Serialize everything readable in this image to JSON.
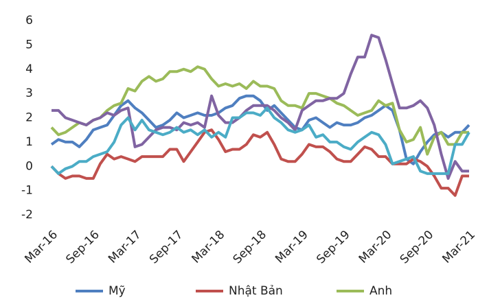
{
  "chart_data": {
    "type": "line",
    "categories": [
      "Mar-16",
      null,
      null,
      null,
      null,
      null,
      "Sep-16",
      null,
      null,
      null,
      null,
      null,
      "Mar-17",
      null,
      null,
      null,
      null,
      null,
      "Sep-17",
      null,
      null,
      null,
      null,
      null,
      "Mar-18",
      null,
      null,
      null,
      null,
      null,
      "Sep-18",
      null,
      null,
      null,
      null,
      null,
      "Mar-19",
      null,
      null,
      null,
      null,
      null,
      "Sep-19",
      null,
      null,
      null,
      null,
      null,
      "Mar-20",
      null,
      null,
      null,
      null,
      null,
      "Sep-20",
      null,
      null,
      null,
      null,
      null,
      "Mar-21"
    ],
    "series": [
      {
        "name": "Mỹ",
        "color": "#4f7fc0",
        "values": [
          0.9,
          1.1,
          1.0,
          1.0,
          0.8,
          1.1,
          1.5,
          1.6,
          1.7,
          2.1,
          2.5,
          2.7,
          2.4,
          2.2,
          1.9,
          1.6,
          1.7,
          1.9,
          2.2,
          2.0,
          2.1,
          2.2,
          2.1,
          2.1,
          2.2,
          2.4,
          2.5,
          2.8,
          2.9,
          2.9,
          2.7,
          2.3,
          2.5,
          2.2,
          1.9,
          1.6,
          1.5,
          1.9,
          2.0,
          1.8,
          1.6,
          1.8,
          1.7,
          1.7,
          1.8,
          2.0,
          2.1,
          2.3,
          2.5,
          2.3,
          1.5,
          0.3,
          0.1,
          0.6,
          1.0,
          1.3,
          1.4,
          1.2,
          1.4,
          1.4,
          1.7
        ]
      },
      {
        "name": "Nhật Bản",
        "color": "#c0504d",
        "values": [
          0,
          -0.3,
          -0.5,
          -0.4,
          -0.4,
          -0.5,
          -0.5,
          0.1,
          0.5,
          0.3,
          0.4,
          0.3,
          0.2,
          0.4,
          0.4,
          0.4,
          0.4,
          0.7,
          0.7,
          0.2,
          0.6,
          1.0,
          1.4,
          1.5,
          1.1,
          0.6,
          0.7,
          0.7,
          0.9,
          1.3,
          1.2,
          1.4,
          0.9,
          0.3,
          0.2,
          0.2,
          0.5,
          0.9,
          0.8,
          0.8,
          0.6,
          0.3,
          0.2,
          0.2,
          0.5,
          0.8,
          0.7,
          0.4,
          0.4,
          0.1,
          0.1,
          0.1,
          0.3,
          0.2,
          0,
          -0.4,
          -0.9,
          -0.9,
          -1.2,
          -0.4,
          -0.4
        ]
      },
      {
        "name": "Anh",
        "color": "#9bbb59",
        "values": [
          1.6,
          1.3,
          1.4,
          1.6,
          1.8,
          1.7,
          1.9,
          2.0,
          2.3,
          2.5,
          2.6,
          3.2,
          3.1,
          3.5,
          3.7,
          3.5,
          3.6,
          3.9,
          3.9,
          4.0,
          3.9,
          4.1,
          4.0,
          3.6,
          3.3,
          3.4,
          3.3,
          3.4,
          3.2,
          3.5,
          3.3,
          3.3,
          3.2,
          2.7,
          2.5,
          2.5,
          2.4,
          3.0,
          3.0,
          2.9,
          2.8,
          2.6,
          2.5,
          2.3,
          2.1,
          2.2,
          2.3,
          2.7,
          2.5,
          2.6,
          1.5,
          1.0,
          1.1,
          1.6,
          0.5,
          1.2,
          1.4,
          0.9,
          0.9,
          1.4,
          1.4
        ]
      },
      {
        "color": "#8064a2",
        "values": [
          2.3,
          2.3,
          2.0,
          1.9,
          1.8,
          1.7,
          1.9,
          2.0,
          2.2,
          2.1,
          2.3,
          2.4,
          0.8,
          0.9,
          1.2,
          1.5,
          1.6,
          1.6,
          1.5,
          1.8,
          1.7,
          1.8,
          1.6,
          2.9,
          2.1,
          1.8,
          1.8,
          2.0,
          2.3,
          2.5,
          2.5,
          2.5,
          2.3,
          2.0,
          1.8,
          1.5,
          2.3,
          2.5,
          2.7,
          2.7,
          2.8,
          2.8,
          3.0,
          3.8,
          4.5,
          4.5,
          5.4,
          5.3,
          4.4,
          3.4,
          2.4,
          2.4,
          2.5,
          2.7,
          2.4,
          1.7,
          0.5,
          -0.5,
          0.2,
          -0.2,
          -0.2
        ]
      },
      {
        "color": "#4bacc6",
        "values": [
          0,
          -0.3,
          -0.1,
          0,
          0.2,
          0.2,
          0.4,
          0.5,
          0.6,
          1.0,
          1.7,
          2.0,
          1.5,
          1.9,
          1.5,
          1.4,
          1.3,
          1.4,
          1.6,
          1.4,
          1.5,
          1.3,
          1.5,
          1.2,
          1.4,
          1.2,
          2.0,
          2.0,
          2.2,
          2.2,
          2.1,
          2.4,
          2.0,
          1.8,
          1.5,
          1.4,
          1.5,
          1.7,
          1.2,
          1.3,
          1.0,
          1.0,
          0.8,
          0.7,
          1.0,
          1.2,
          1.4,
          1.3,
          0.9,
          0.1,
          0.2,
          0.3,
          0.4,
          -0.2,
          -0.3,
          -0.3,
          -0.3,
          -0.3,
          0.9,
          0.9,
          1.4
        ]
      }
    ],
    "ylim": [
      -2,
      6
    ],
    "yticks": [
      -2,
      -1,
      0,
      1,
      2,
      3,
      4,
      5,
      6
    ],
    "grid": false,
    "legend": "bottom"
  }
}
